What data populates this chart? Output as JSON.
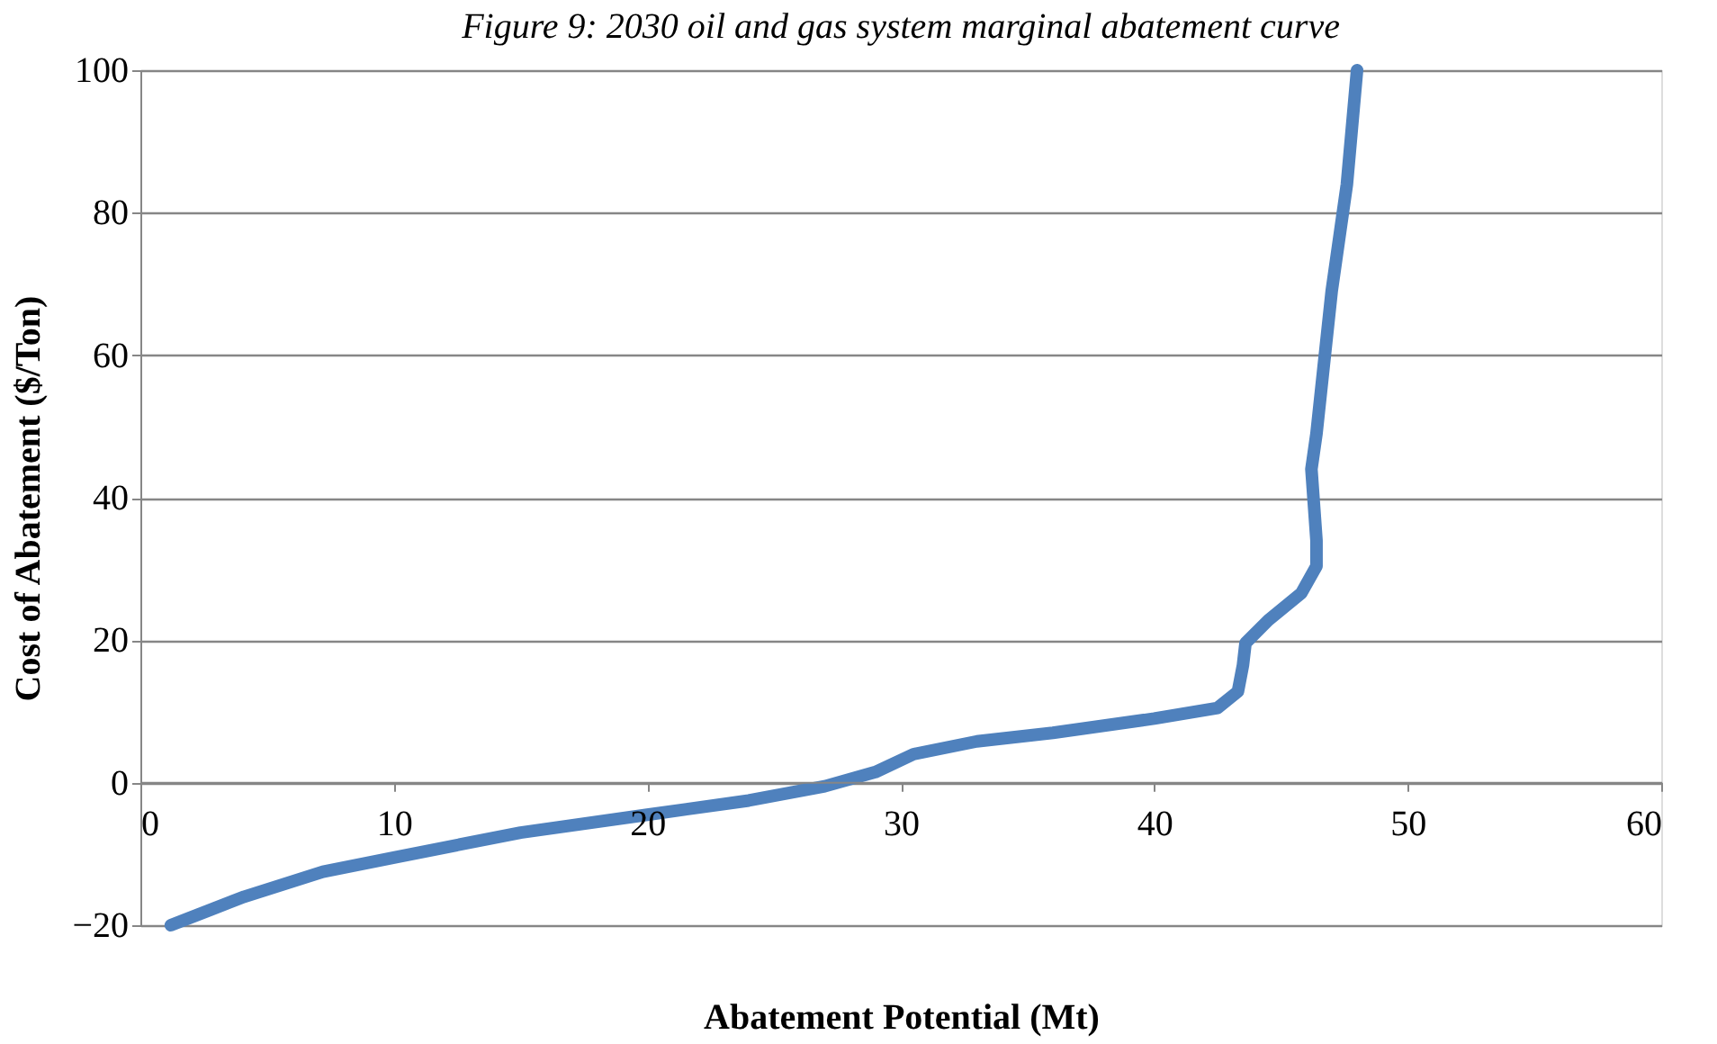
{
  "chart_data": {
    "type": "line",
    "title": "Figure 9: 2030 oil and gas system marginal abatement curve",
    "xlabel": "Abatement Potential (Mt)",
    "ylabel": "Cost of Abatement ($/Ton)",
    "x": [
      1.2,
      4.1,
      7.2,
      10,
      15,
      20,
      24,
      27,
      29,
      30.5,
      33,
      36,
      40,
      42.5,
      43.3,
      43.5,
      43.6,
      44.5,
      45.8,
      46.4,
      46.4,
      46.2,
      46.4,
      47,
      47.6,
      48
    ],
    "series": [
      {
        "color": "#4f81bd",
        "values": [
          -20,
          -16,
          -12.5,
          -10.5,
          -7,
          -4.5,
          -2.5,
          -0.5,
          1.5,
          4,
          5.8,
          7,
          9,
          10.5,
          12.8,
          16.5,
          19.6,
          22.8,
          26.6,
          30.4,
          34,
          44,
          49,
          69,
          84,
          100
        ]
      }
    ],
    "xlim": [
      0,
      60
    ],
    "xticks": [
      0,
      10,
      20,
      30,
      40,
      50,
      60
    ],
    "ylim": [
      -20,
      100
    ],
    "yticks": [
      -20,
      0,
      20,
      40,
      60,
      80,
      100
    ],
    "grid": "y",
    "line_style": "solid"
  }
}
